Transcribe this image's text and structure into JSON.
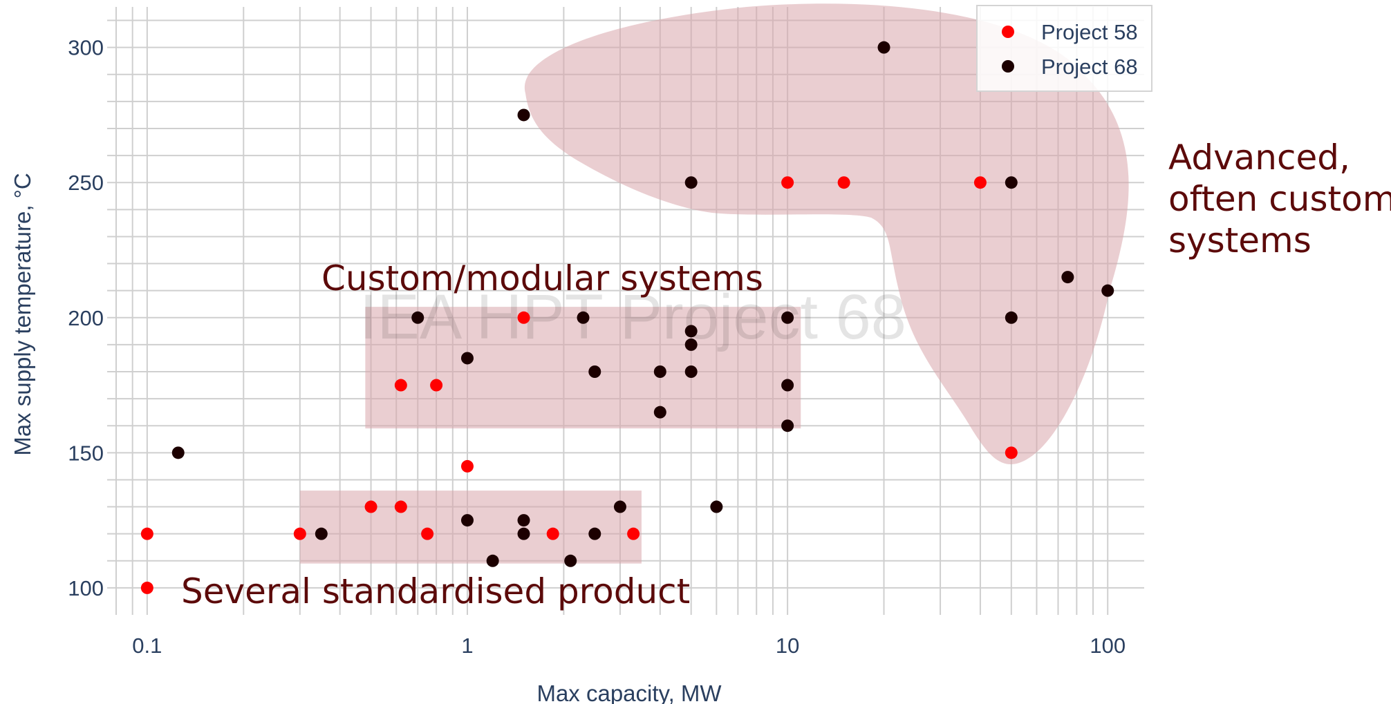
{
  "chart_data": {
    "type": "scatter",
    "xlabel": "Max capacity, MW",
    "ylabel": "Max supply temperature, °C",
    "x_scale": "log",
    "xlim": [
      0.075,
      130
    ],
    "ylim": [
      90,
      315
    ],
    "x_ticks": [
      0.1,
      1,
      10,
      100
    ],
    "x_tick_labels": [
      "0.1",
      "1",
      "10",
      "100"
    ],
    "y_ticks": [
      100,
      150,
      200,
      250,
      300
    ],
    "y_tick_labels": [
      "100",
      "150",
      "200",
      "250",
      "300"
    ],
    "grid": true,
    "legend_position": "top-right",
    "watermark": "IEA HPT Project 68",
    "series": [
      {
        "name": "Project 58",
        "color": "#ff0000",
        "points": [
          [
            0.1,
            120
          ],
          [
            0.1,
            100
          ],
          [
            0.3,
            120
          ],
          [
            0.5,
            130
          ],
          [
            0.62,
            130
          ],
          [
            0.75,
            120
          ],
          [
            0.62,
            175
          ],
          [
            0.8,
            175
          ],
          [
            1.0,
            145
          ],
          [
            1.5,
            200
          ],
          [
            1.85,
            120
          ],
          [
            3.3,
            120
          ],
          [
            10,
            250
          ],
          [
            15,
            250
          ],
          [
            40,
            250
          ],
          [
            50,
            150
          ]
        ]
      },
      {
        "name": "Project 68",
        "color": "#1c0000",
        "points": [
          [
            0.125,
            150
          ],
          [
            0.35,
            120
          ],
          [
            0.7,
            200
          ],
          [
            1.0,
            185
          ],
          [
            1.0,
            125
          ],
          [
            1.2,
            110
          ],
          [
            1.5,
            125
          ],
          [
            1.5,
            120
          ],
          [
            1.5,
            275
          ],
          [
            2.1,
            110
          ],
          [
            2.3,
            200
          ],
          [
            2.5,
            180
          ],
          [
            2.5,
            120
          ],
          [
            3.0,
            130
          ],
          [
            4.0,
            180
          ],
          [
            4.0,
            165
          ],
          [
            5.0,
            250
          ],
          [
            5.0,
            195
          ],
          [
            5.0,
            190
          ],
          [
            5.0,
            180
          ],
          [
            6.0,
            130
          ],
          [
            10,
            200
          ],
          [
            10,
            175
          ],
          [
            10,
            160
          ],
          [
            20,
            300
          ],
          [
            50,
            250
          ],
          [
            50,
            200
          ],
          [
            75,
            215
          ],
          [
            100,
            210
          ]
        ]
      }
    ],
    "regions": [
      {
        "label": "Several standardised product",
        "x": [
          0.3,
          3.5
        ],
        "y": [
          109,
          136
        ]
      },
      {
        "label": "Custom/modular systems",
        "x": [
          0.48,
          11
        ],
        "y": [
          159,
          204
        ]
      },
      {
        "label": "Advanced, often custom systems",
        "shape": "blob"
      }
    ],
    "region_color": "#d9a6ab",
    "annotations": [
      {
        "lines": [
          "Several standardised product"
        ]
      },
      {
        "lines": [
          "Custom/modular systems"
        ]
      },
      {
        "lines": [
          "Advanced,",
          "often custom",
          "systems"
        ]
      }
    ]
  }
}
